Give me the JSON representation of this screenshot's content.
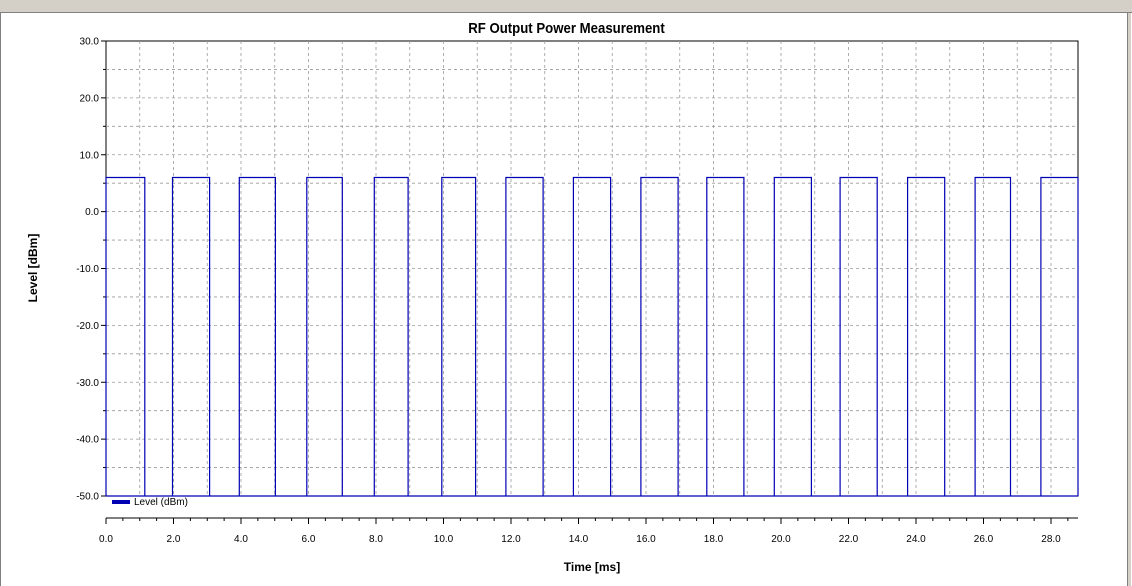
{
  "chart_data": {
    "type": "line",
    "title": "RF Output Power Measurement",
    "xlabel": "Time [ms]",
    "ylabel": "Level [dBm]",
    "xlim": [
      0,
      28.8
    ],
    "ylim": [
      -50,
      30
    ],
    "x_ticks": [
      0,
      2,
      4,
      6,
      8,
      10,
      12,
      14,
      16,
      18,
      20,
      22,
      24,
      26,
      28
    ],
    "x_tick_labels": [
      "0.0",
      "2.0",
      "4.0",
      "6.0",
      "8.0",
      "10.0",
      "12.0",
      "14.0",
      "16.0",
      "18.0",
      "20.0",
      "22.0",
      "24.0",
      "26.0",
      "28.0"
    ],
    "y_ticks": [
      30,
      20,
      10,
      0,
      -10,
      -20,
      -30,
      -40,
      -50
    ],
    "y_tick_labels": [
      "30.0",
      "20.0",
      "10.0",
      "0.0",
      "-10.0",
      "-20.0",
      "-30.0",
      "-40.0",
      "-50.0"
    ],
    "grid": true,
    "legend_position": "bottom-left",
    "series": [
      {
        "name": "Level (dBm)",
        "color": "#0000b4",
        "on_level": 6,
        "off_level": -50,
        "pulses": [
          [
            0.0,
            1.15
          ],
          [
            1.97,
            3.07
          ],
          [
            3.95,
            5.02
          ],
          [
            5.95,
            7.0
          ],
          [
            7.95,
            8.95
          ],
          [
            9.95,
            10.95
          ],
          [
            11.85,
            12.95
          ],
          [
            13.85,
            14.95
          ],
          [
            15.85,
            16.95
          ],
          [
            17.8,
            18.9
          ],
          [
            19.8,
            20.9
          ],
          [
            21.75,
            22.85
          ],
          [
            23.75,
            24.85
          ],
          [
            25.75,
            26.8
          ],
          [
            27.7,
            28.8
          ]
        ],
        "final_rise": 28.78
      }
    ]
  }
}
